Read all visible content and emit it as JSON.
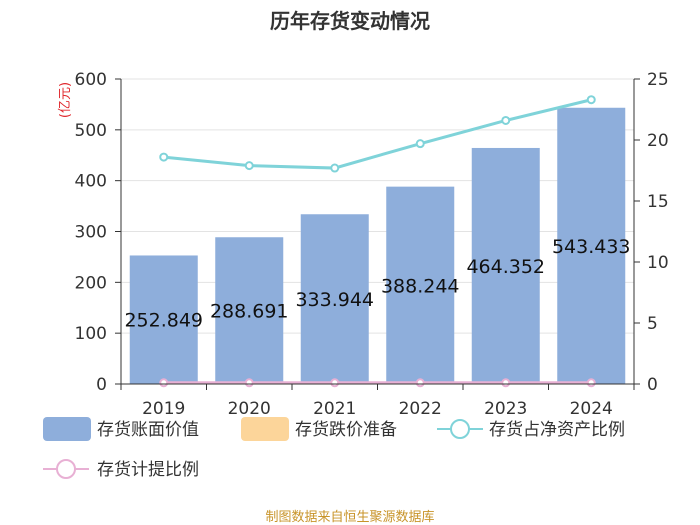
{
  "chart_data": {
    "type": "bar",
    "title": "历年存货变动情况",
    "categories": [
      "2019",
      "2020",
      "2021",
      "2022",
      "2023",
      "2024"
    ],
    "left_axis": {
      "unit_label": "(亿元)",
      "ticks": [
        "0",
        "100",
        "200",
        "300",
        "400",
        "500",
        "600"
      ],
      "ylim": [
        0,
        600
      ]
    },
    "right_axis": {
      "unit_label": "%",
      "ticks": [
        "0",
        "5",
        "10",
        "15",
        "20",
        "25"
      ],
      "ylim": [
        0,
        25
      ]
    },
    "series": [
      {
        "name": "存货账面价值",
        "type": "bar",
        "axis": "left",
        "color": "#8eaedb",
        "values": [
          252.849,
          288.691,
          333.944,
          388.244,
          464.352,
          543.433
        ],
        "labels": [
          "252.849",
          "288.691",
          "333.944",
          "388.244",
          "464.352",
          "543.433"
        ]
      },
      {
        "name": "存货跌价准备",
        "type": "bar",
        "axis": "left",
        "color": "#fcd59a",
        "values": [
          0.3,
          0.3,
          0.3,
          0.3,
          0.3,
          0.3
        ]
      },
      {
        "name": "存货占净资产比例",
        "type": "line",
        "axis": "right",
        "color": "#7fd3d9",
        "values": [
          18.6,
          17.9,
          17.7,
          19.7,
          21.6,
          23.3
        ]
      },
      {
        "name": "存货计提比例",
        "type": "line",
        "axis": "right",
        "color": "#e8b0d4",
        "values": [
          0.1,
          0.1,
          0.1,
          0.1,
          0.1,
          0.1
        ]
      }
    ]
  },
  "footer": {
    "source": "制图数据来自恒生聚源数据库"
  }
}
